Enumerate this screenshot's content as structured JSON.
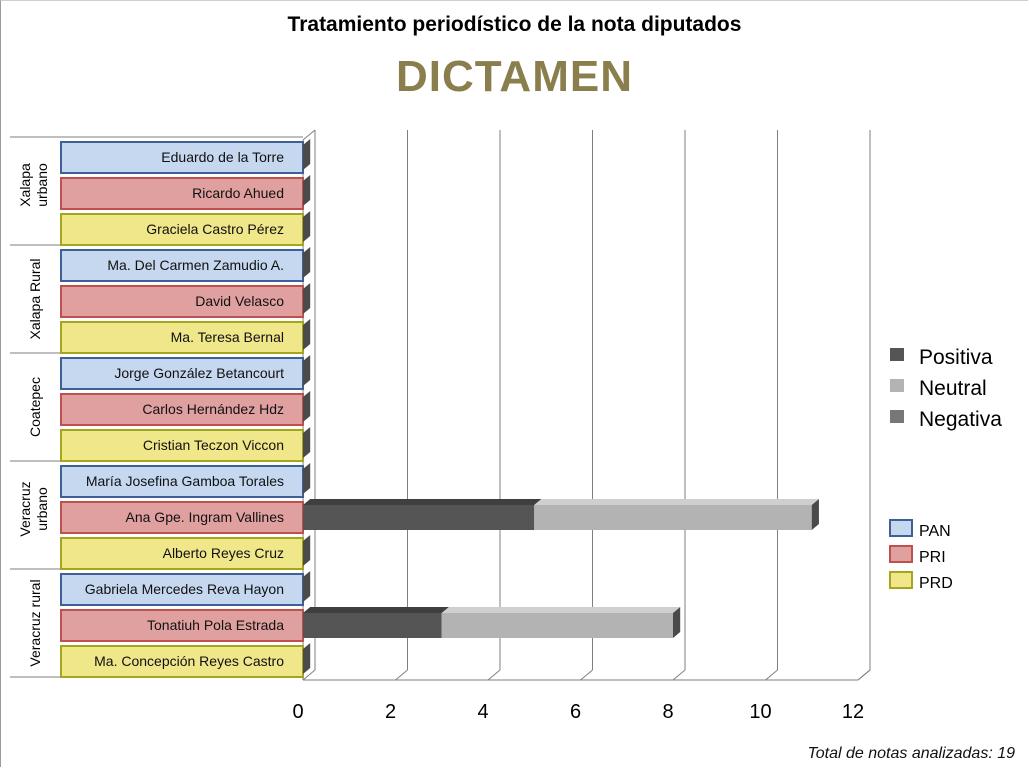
{
  "title": "Tratamiento periodístico de la nota diputados",
  "subtitle": "DICTAMEN",
  "footer": "Total de notas analizadas: 19",
  "legend_series": [
    {
      "label": "Positiva",
      "color": "#555555"
    },
    {
      "label": "Neutral",
      "color": "#b3b3b3"
    },
    {
      "label": "Negativa",
      "color": "#777777"
    }
  ],
  "legend_parties": [
    {
      "label": "PAN",
      "fill": "#c6d8ef",
      "border": "#3d6195"
    },
    {
      "label": "PRI",
      "fill": "#e0a0a0",
      "border": "#c0504d"
    },
    {
      "label": "PRD",
      "fill": "#f0e68a",
      "border": "#a5a51e"
    }
  ],
  "chart_data": {
    "type": "bar",
    "orientation": "horizontal",
    "stacked": true,
    "title": "Tratamiento periodístico de la nota diputados",
    "subtitle": "DICTAMEN",
    "x_ticks": [
      0,
      2,
      4,
      6,
      8,
      10,
      12
    ],
    "xlim": [
      0,
      12
    ],
    "grid": true,
    "legend_position": "right",
    "groups": [
      {
        "name": "Xalapa urbano",
        "members": [
          {
            "name": "Eduardo de la Torre",
            "party": "PAN",
            "positiva": 0,
            "neutral": 0,
            "negativa": 0
          },
          {
            "name": "Ricardo Ahued",
            "party": "PRI",
            "positiva": 0,
            "neutral": 0,
            "negativa": 0
          },
          {
            "name": "Graciela Castro Pérez",
            "party": "PRD",
            "positiva": 0,
            "neutral": 0,
            "negativa": 0
          }
        ]
      },
      {
        "name": "Xalapa Rural",
        "members": [
          {
            "name": "Ma. Del Carmen Zamudio A.",
            "party": "PAN",
            "positiva": 0,
            "neutral": 0,
            "negativa": 0
          },
          {
            "name": "David Velasco",
            "party": "PRI",
            "positiva": 0,
            "neutral": 0,
            "negativa": 0
          },
          {
            "name": "Ma. Teresa  Bernal",
            "party": "PRD",
            "positiva": 0,
            "neutral": 0,
            "negativa": 0
          }
        ]
      },
      {
        "name": "Coatepec",
        "members": [
          {
            "name": "Jorge González Betancourt",
            "party": "PAN",
            "positiva": 0,
            "neutral": 0,
            "negativa": 0
          },
          {
            "name": "Carlos Hernández Hdz",
            "party": "PRI",
            "positiva": 0,
            "neutral": 0,
            "negativa": 0
          },
          {
            "name": "Cristian Teczon Viccon",
            "party": "PRD",
            "positiva": 0,
            "neutral": 0,
            "negativa": 0
          }
        ]
      },
      {
        "name": "Veracruz urbano",
        "members": [
          {
            "name": "María Josefina Gamboa Torales",
            "party": "PAN",
            "positiva": 0,
            "neutral": 0,
            "negativa": 0
          },
          {
            "name": "Ana Gpe. Ingram Vallines",
            "party": "PRI",
            "positiva": 5,
            "neutral": 6,
            "negativa": 0
          },
          {
            "name": "Alberto Reyes Cruz",
            "party": "PRD",
            "positiva": 0,
            "neutral": 0,
            "negativa": 0
          }
        ]
      },
      {
        "name": "Veracruz rural",
        "members": [
          {
            "name": "Gabriela Mercedes Reva Hayon",
            "party": "PAN",
            "positiva": 0,
            "neutral": 0,
            "negativa": 0
          },
          {
            "name": "Tonatiuh Pola Estrada",
            "party": "PRI",
            "positiva": 3,
            "neutral": 5,
            "negativa": 0
          },
          {
            "name": "Ma. Concepción Reyes Castro",
            "party": "PRD",
            "positiva": 0,
            "neutral": 0,
            "negativa": 0
          }
        ]
      }
    ]
  }
}
